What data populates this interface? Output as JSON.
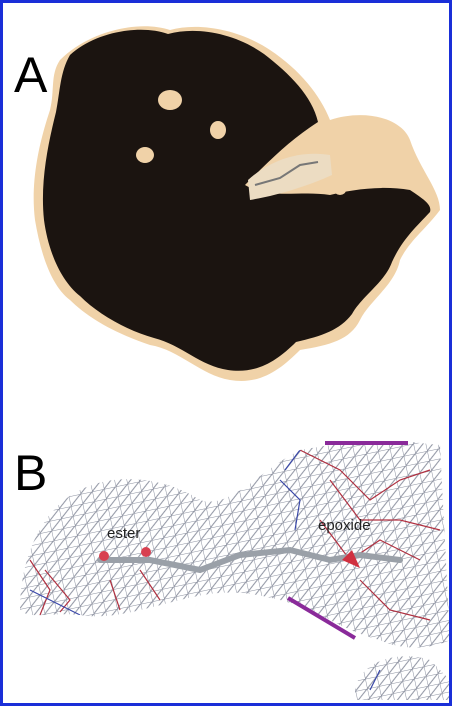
{
  "panels": [
    {
      "label": "A"
    },
    {
      "label": "B",
      "annotations": [
        "ester",
        "epoxide"
      ]
    }
  ]
}
